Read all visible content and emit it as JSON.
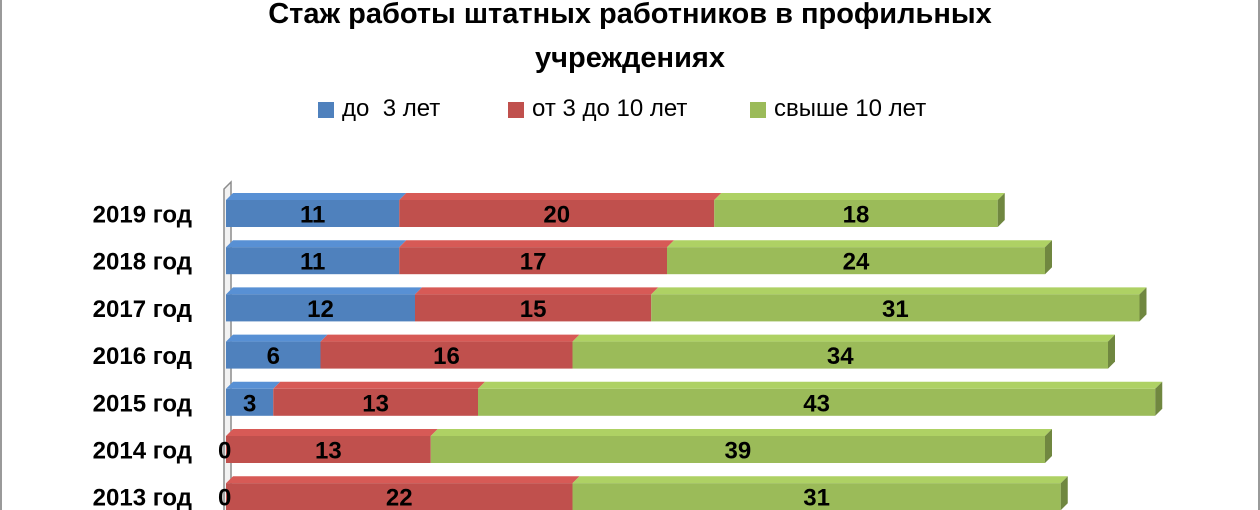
{
  "chart_data": {
    "type": "bar",
    "orientation": "horizontal",
    "stacked": true,
    "title": "Стаж работы штатных работников в профильных учреждениях",
    "title_lines": [
      "Стаж работы штатных работников в профильных",
      "учреждениях"
    ],
    "categories": [
      "2019 год",
      "2018 год",
      "2017 год",
      "2016 год",
      "2015 год",
      "2014 год",
      "2013 год"
    ],
    "series": [
      {
        "name": "до  3 лет",
        "color": "#4f81bd",
        "values": [
          11,
          11,
          12,
          6,
          3,
          0,
          0
        ]
      },
      {
        "name": "от 3 до 10 лет",
        "color": "#c0504d",
        "values": [
          20,
          17,
          15,
          16,
          13,
          13,
          22
        ]
      },
      {
        "name": "свыше 10 лет",
        "color": "#9bbb59",
        "values": [
          18,
          24,
          31,
          34,
          43,
          39,
          31
        ]
      }
    ],
    "data_labels": true,
    "legend_position": "top",
    "grid": false,
    "three_d": true
  }
}
